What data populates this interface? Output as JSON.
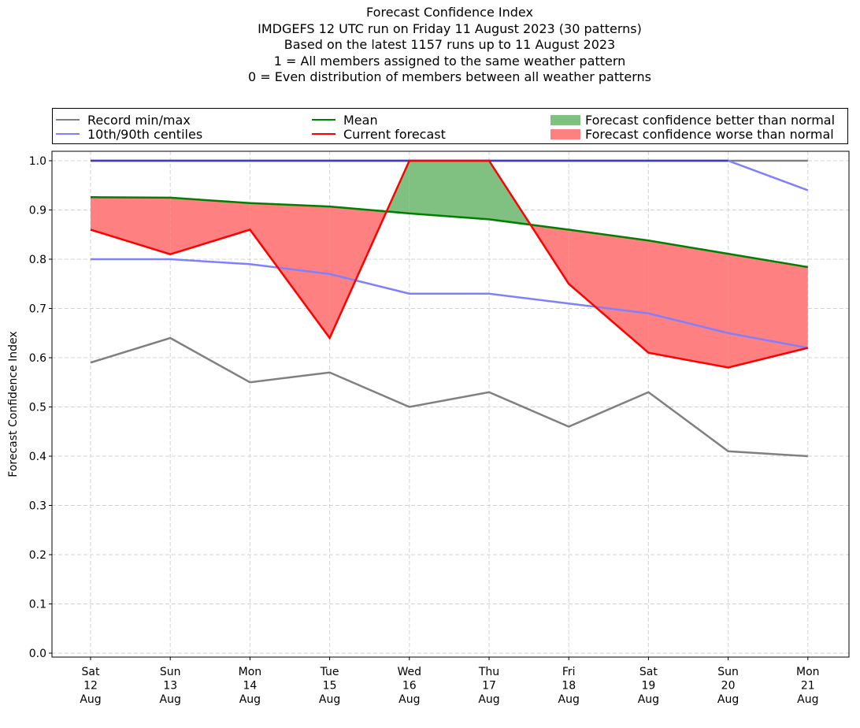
{
  "chart_title": {
    "lines": [
      "Forecast Confidence Index",
      "IMDGEFS 12 UTC run on Friday 11 August 2023 (30 patterns)",
      "Based on the latest 1157 runs up to 11 August 2023",
      "1 = All members assigned to the same weather pattern",
      "0 = Even distribution of members between all weather patterns"
    ]
  },
  "legend": {
    "record": "Record min/max",
    "centiles": "10th/90th centiles",
    "mean": "Mean",
    "current": "Current forecast",
    "better": "Forecast confidence better than normal",
    "worse": "Forecast confidence worse than normal"
  },
  "colors": {
    "record": "#808080",
    "centiles": "#8080ff",
    "mean": "#008000",
    "current": "#ff0000",
    "better": "#80c080",
    "worse": "#ff8080",
    "grid": "#d3d3d3"
  },
  "chart_data": {
    "type": "line",
    "ylabel": "Forecast Confidence Index",
    "xlabel": "",
    "ylim": [
      0.0,
      1.0
    ],
    "yticks": [
      "0.0",
      "0.1",
      "0.2",
      "0.3",
      "0.4",
      "0.5",
      "0.6",
      "0.7",
      "0.8",
      "0.9",
      "1.0"
    ],
    "grid": true,
    "legend_position": "top",
    "categories": [
      [
        "Sat",
        "12",
        "Aug"
      ],
      [
        "Sun",
        "13",
        "Aug"
      ],
      [
        "Mon",
        "14",
        "Aug"
      ],
      [
        "Tue",
        "15",
        "Aug"
      ],
      [
        "Wed",
        "16",
        "Aug"
      ],
      [
        "Thu",
        "17",
        "Aug"
      ],
      [
        "Fri",
        "18",
        "Aug"
      ],
      [
        "Sat",
        "19",
        "Aug"
      ],
      [
        "Sun",
        "20",
        "Aug"
      ],
      [
        "Mon",
        "21",
        "Aug"
      ]
    ],
    "series": [
      {
        "name": "Record min/max",
        "key": "record_max",
        "values": [
          1.0,
          1.0,
          1.0,
          1.0,
          1.0,
          1.0,
          1.0,
          1.0,
          1.0,
          1.0
        ]
      },
      {
        "name": "Record min/max",
        "key": "record_min",
        "values": [
          0.59,
          0.64,
          0.55,
          0.57,
          0.5,
          0.53,
          0.46,
          0.53,
          0.41,
          0.4
        ]
      },
      {
        "name": "10th/90th centiles",
        "key": "p90",
        "values": [
          1.0,
          1.0,
          1.0,
          1.0,
          1.0,
          1.0,
          1.0,
          1.0,
          1.0,
          0.94
        ]
      },
      {
        "name": "10th/90th centiles",
        "key": "p10",
        "values": [
          0.8,
          0.8,
          0.79,
          0.77,
          0.73,
          0.73,
          0.71,
          0.69,
          0.65,
          0.62
        ]
      },
      {
        "name": "Mean",
        "key": "mean",
        "values": [
          0.926,
          0.925,
          0.914,
          0.907,
          0.893,
          0.881,
          0.86,
          0.838,
          0.811,
          0.784
        ]
      },
      {
        "name": "Current forecast",
        "key": "current",
        "values": [
          0.86,
          0.81,
          0.86,
          0.64,
          1.0,
          1.0,
          0.75,
          0.61,
          0.58,
          0.62
        ]
      }
    ]
  }
}
